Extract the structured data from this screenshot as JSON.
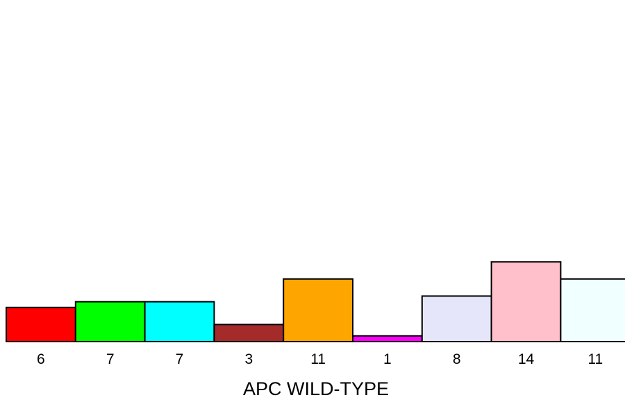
{
  "chart_data": {
    "type": "bar",
    "categories": [
      "6",
      "7",
      "7",
      "3",
      "11",
      "1",
      "8",
      "14",
      "11"
    ],
    "values": [
      6,
      7,
      7,
      3,
      11,
      1,
      8,
      14,
      11
    ],
    "colors": [
      "#ff0000",
      "#00ff00",
      "#00ffff",
      "#a52a2a",
      "#ffa500",
      "#ff00ff",
      "#e6e6fa",
      "#ffc0cb",
      "#f0ffff"
    ],
    "title": "",
    "xlabel": "APC WILD-TYPE",
    "ylabel": "",
    "ylim": [
      0,
      60
    ],
    "grid": false,
    "legend": "none"
  }
}
